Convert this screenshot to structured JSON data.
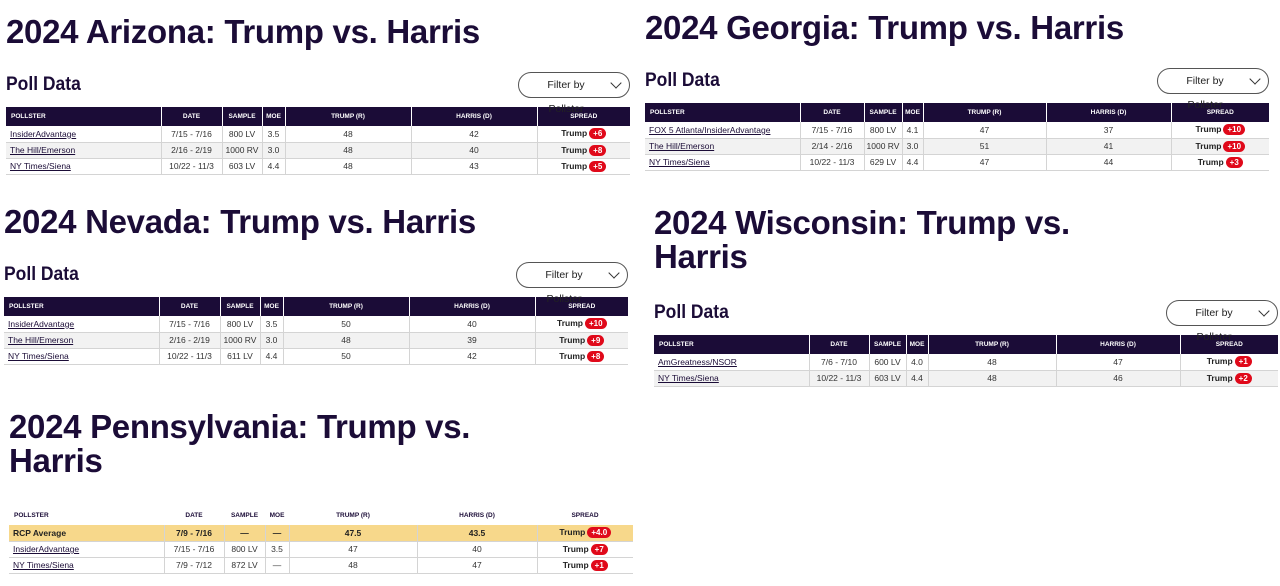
{
  "headers": {
    "pollster": "POLLSTER",
    "date": "DATE",
    "sample": "SAMPLE",
    "moe": "MOE",
    "trump": "TRUMP (R)",
    "harris": "HARRIS (D)",
    "spread": "SPREAD"
  },
  "poll_label": "Poll Data",
  "filter_label": "Filter by Pollster",
  "arizona": {
    "title": "2024 Arizona: Trump vs. Harris",
    "rows": [
      {
        "pollster": "InsiderAdvantage",
        "date": "7/15 - 7/16",
        "sample": "800 LV",
        "moe": "3.5",
        "trump": "48",
        "harris": "42",
        "leader": "Trump",
        "spread": "+6"
      },
      {
        "pollster": "The Hill/Emerson",
        "date": "2/16 - 2/19",
        "sample": "1000 RV",
        "moe": "3.0",
        "trump": "48",
        "harris": "40",
        "leader": "Trump",
        "spread": "+8"
      },
      {
        "pollster": "NY Times/Siena",
        "date": "10/22 - 11/3",
        "sample": "603 LV",
        "moe": "4.4",
        "trump": "48",
        "harris": "43",
        "leader": "Trump",
        "spread": "+5"
      }
    ]
  },
  "nevada": {
    "title": "2024 Nevada: Trump vs. Harris",
    "rows": [
      {
        "pollster": "InsiderAdvantage",
        "date": "7/15 - 7/16",
        "sample": "800 LV",
        "moe": "3.5",
        "trump": "50",
        "harris": "40",
        "leader": "Trump",
        "spread": "+10"
      },
      {
        "pollster": "The Hill/Emerson",
        "date": "2/16 - 2/19",
        "sample": "1000 RV",
        "moe": "3.0",
        "trump": "48",
        "harris": "39",
        "leader": "Trump",
        "spread": "+9"
      },
      {
        "pollster": "NY Times/Siena",
        "date": "10/22 - 11/3",
        "sample": "611 LV",
        "moe": "4.4",
        "trump": "50",
        "harris": "42",
        "leader": "Trump",
        "spread": "+8"
      }
    ]
  },
  "pennsylvania": {
    "title_line1": "2024 Pennsylvania: Trump vs.",
    "title_line2": "Harris",
    "rows": [
      {
        "pollster": "RCP Average",
        "date": "7/9 - 7/16",
        "sample": "—",
        "moe": "—",
        "trump": "47.5",
        "harris": "43.5",
        "leader": "Trump",
        "spread": "+4.0"
      },
      {
        "pollster": "InsiderAdvantage",
        "date": "7/15 - 7/16",
        "sample": "800 LV",
        "moe": "3.5",
        "trump": "47",
        "harris": "40",
        "leader": "Trump",
        "spread": "+7"
      },
      {
        "pollster": "NY Times/Siena",
        "date": "7/9 - 7/12",
        "sample": "872 LV",
        "moe": "—",
        "trump": "48",
        "harris": "47",
        "leader": "Trump",
        "spread": "+1"
      }
    ]
  },
  "georgia": {
    "title": "2024 Georgia: Trump vs. Harris",
    "rows": [
      {
        "pollster": "FOX 5 Atlanta/InsiderAdvantage",
        "date": "7/15 - 7/16",
        "sample": "800 LV",
        "moe": "4.1",
        "trump": "47",
        "harris": "37",
        "leader": "Trump",
        "spread": "+10"
      },
      {
        "pollster": "The Hill/Emerson",
        "date": "2/14 - 2/16",
        "sample": "1000 RV",
        "moe": "3.0",
        "trump": "51",
        "harris": "41",
        "leader": "Trump",
        "spread": "+10"
      },
      {
        "pollster": "NY Times/Siena",
        "date": "10/22 - 11/3",
        "sample": "629 LV",
        "moe": "4.4",
        "trump": "47",
        "harris": "44",
        "leader": "Trump",
        "spread": "+3"
      }
    ]
  },
  "wisconsin": {
    "title_line1": "2024 Wisconsin: Trump vs.",
    "title_line2": "Harris",
    "rows": [
      {
        "pollster": "AmGreatness/NSOR",
        "date": "7/6 - 7/10",
        "sample": "600 LV",
        "moe": "4.0",
        "trump": "48",
        "harris": "47",
        "leader": "Trump",
        "spread": "+1"
      },
      {
        "pollster": "NY Times/Siena",
        "date": "10/22 - 11/3",
        "sample": "603 LV",
        "moe": "4.4",
        "trump": "48",
        "harris": "46",
        "leader": "Trump",
        "spread": "+2"
      }
    ]
  }
}
